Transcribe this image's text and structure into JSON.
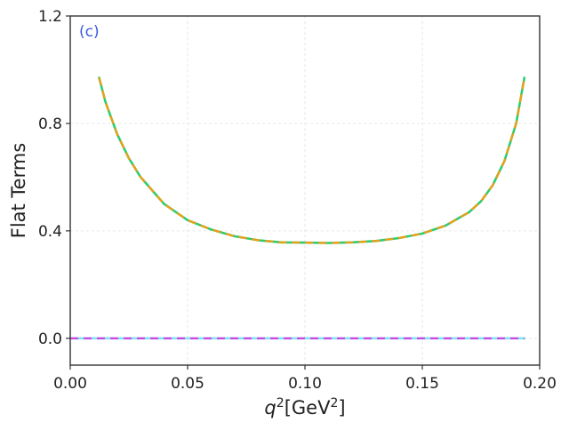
{
  "chart_data": {
    "type": "line",
    "title": "",
    "panel_label": "(c)",
    "xlabel": {
      "var": "q",
      "sup": "2",
      "unit_pre": "[GeV",
      "unit_sup": "2",
      "unit_post": "]"
    },
    "ylabel": "Flat Terms",
    "xlim": [
      0.0,
      0.2
    ],
    "ylim": [
      -0.1,
      1.2
    ],
    "xticks": [
      0.0,
      0.05,
      0.1,
      0.15,
      0.2
    ],
    "xtick_labels": [
      "0.00",
      "0.05",
      "0.10",
      "0.15",
      "0.20"
    ],
    "yticks": [
      0.0,
      0.4,
      0.8,
      1.2
    ],
    "ytick_labels": [
      "0.0",
      "0.4",
      "0.8",
      "1.2"
    ],
    "grid": true,
    "legend": "none",
    "series": [
      {
        "color": "#2ecc71",
        "style": "solid",
        "x": [
          0.0123,
          0.015,
          0.02,
          0.025,
          0.03,
          0.04,
          0.05,
          0.06,
          0.07,
          0.08,
          0.09,
          0.1,
          0.11,
          0.12,
          0.13,
          0.14,
          0.15,
          0.16,
          0.17,
          0.175,
          0.18,
          0.185,
          0.19,
          0.1935
        ],
        "y": [
          0.97,
          0.88,
          0.76,
          0.67,
          0.6,
          0.5,
          0.44,
          0.405,
          0.38,
          0.365,
          0.357,
          0.356,
          0.355,
          0.357,
          0.362,
          0.373,
          0.39,
          0.42,
          0.47,
          0.51,
          0.57,
          0.66,
          0.8,
          0.97
        ]
      },
      {
        "color": "#f39c12",
        "style": "dashed",
        "x": [
          0.0123,
          0.015,
          0.02,
          0.025,
          0.03,
          0.04,
          0.05,
          0.06,
          0.07,
          0.08,
          0.09,
          0.1,
          0.11,
          0.12,
          0.13,
          0.14,
          0.15,
          0.16,
          0.17,
          0.175,
          0.18,
          0.185,
          0.19,
          0.1935
        ],
        "y": [
          0.97,
          0.88,
          0.76,
          0.67,
          0.6,
          0.5,
          0.44,
          0.405,
          0.38,
          0.365,
          0.357,
          0.356,
          0.355,
          0.357,
          0.362,
          0.373,
          0.39,
          0.42,
          0.47,
          0.51,
          0.57,
          0.66,
          0.8,
          0.97
        ]
      },
      {
        "color": "#7fe3f0",
        "style": "solid",
        "x": [
          0.0,
          0.1935
        ],
        "y": [
          0.0,
          0.0
        ]
      },
      {
        "color": "#d63ce0",
        "style": "dashed",
        "x": [
          0.0,
          0.1935
        ],
        "y": [
          0.0,
          0.0
        ]
      }
    ]
  }
}
